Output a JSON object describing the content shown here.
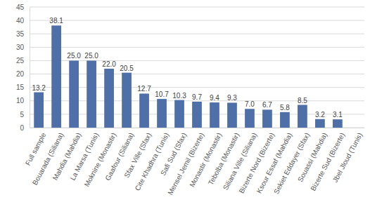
{
  "chart_data": {
    "type": "bar",
    "categories": [
      "Full sample",
      "Bouarada (Siliana)",
      "Mahdia (Mahdia)",
      "La Marsa (Tunis)",
      "Moknine (Monastir)",
      "Gaafour (Siliana)",
      "Sfax Ville (Sfax)",
      "Cite Khadhra (Tunis)",
      "Safi Sud (Sfax)",
      "Mensel Jemil (Bizerte)",
      "Monastir (Monastir)",
      "Tebolba (Monastir)",
      "Siliana Ville (Siliana)",
      "Bizerte Nord (Bizerte)",
      "Ksour Essaf (Mahdia)",
      "Sekiet Eddayer (Sfax)",
      "Souassi (Mahdia)",
      "Bizerte Sud (Bizerte)",
      "Jbel Jloud (Tunis)"
    ],
    "values": [
      13.2,
      38.1,
      25,
      25,
      22,
      20.5,
      12.7,
      10.7,
      10.3,
      9.7,
      9.4,
      9.3,
      7,
      6.7,
      5.8,
      8.5,
      3.2,
      3.1,
      null
    ],
    "value_labels": [
      "13.2",
      "38.1",
      "25.0",
      "25.0",
      "22.0",
      "20.5",
      "12.7",
      "10.7",
      "10.3",
      "9.7",
      "9.4",
      "9.3",
      "7.0",
      "6.7",
      "5.8",
      "8.5",
      "3.2",
      "3.1",
      null
    ],
    "color": "#4f6fa8",
    "ylim": [
      0,
      45
    ],
    "yticks": [
      0,
      5,
      10,
      15,
      20,
      25,
      30,
      35,
      40,
      45
    ],
    "grid": true,
    "data_labels": true
  }
}
